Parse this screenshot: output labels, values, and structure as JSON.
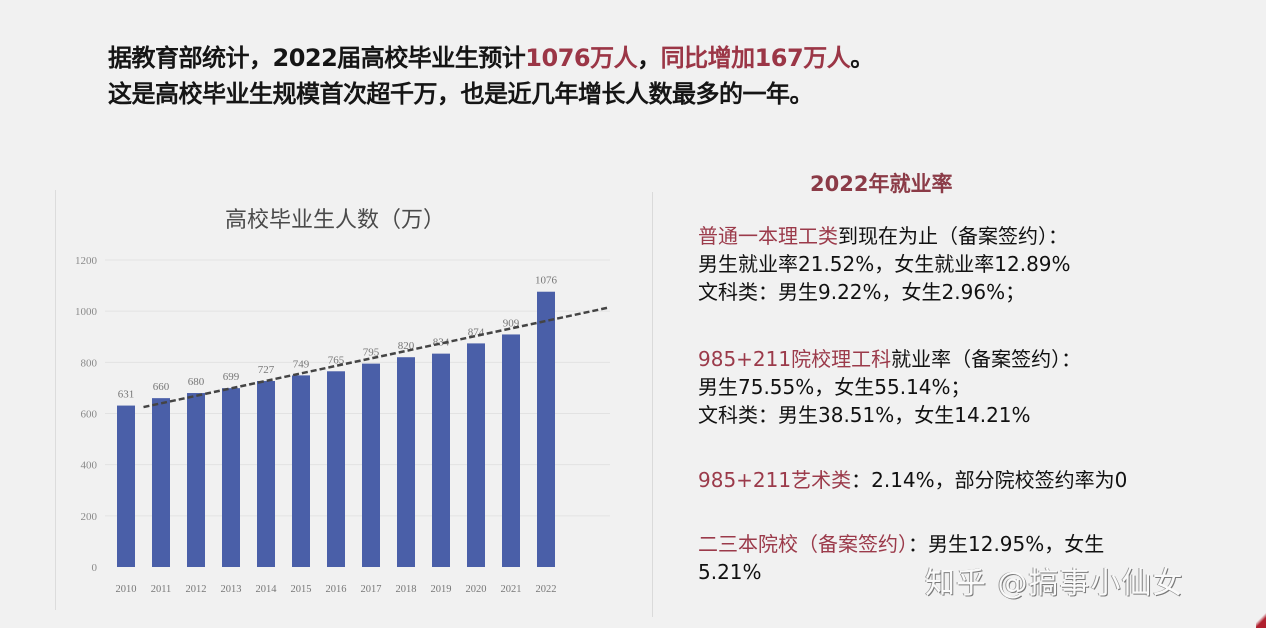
{
  "headline": {
    "line1_prefix": "据教育部统计，2022届高校毕业生预计",
    "line1_highlight1": "1076万人",
    "line1_sep": "，",
    "line1_highlight2": "同比增加167万人",
    "line1_end": "。",
    "line2": "这是高校毕业生规模首次超千万，也是近几年增长人数最多的一年。"
  },
  "chart_data": {
    "type": "bar",
    "title": "高校毕业生人数（万）",
    "categories": [
      "2010",
      "2011",
      "2012",
      "2013",
      "2014",
      "2015",
      "2016",
      "2017",
      "2018",
      "2019",
      "2020",
      "2021",
      "2022"
    ],
    "values": [
      631,
      660,
      680,
      699,
      727,
      749,
      765,
      795,
      820,
      834,
      874,
      909,
      1076
    ],
    "data_labels": [
      "631",
      "660",
      "680",
      "699",
      "727",
      "749",
      "765",
      "795",
      "820",
      "834",
      "874",
      "909",
      "1076"
    ],
    "xlabel": "",
    "ylabel": "",
    "ylim": [
      0,
      1200
    ],
    "yticks": [
      0,
      200,
      400,
      600,
      800,
      1000,
      1200
    ],
    "grid": true,
    "legend": null,
    "bar_color": "#4a5fa8",
    "annotations": [
      "dashed linear trend line"
    ]
  },
  "employment": {
    "title": "2022年就业率",
    "blocks": [
      {
        "red": "普通一本理工类",
        "rest": "到现在为止（备案签约）：",
        "lines": [
          "男生就业率21.52%，女生就业率12.89%",
          "文科类：男生9.22%，女生2.96%；"
        ]
      },
      {
        "red": "985+211院校理工科",
        "rest": "就业率（备案签约）：",
        "lines": [
          "男生75.55%，女生55.14%；",
          "文科类：男生38.51%，女生14.21%"
        ]
      },
      {
        "red": "985+211艺术类",
        "rest": "：2.14%，部分院校签约率为0",
        "lines": []
      },
      {
        "red": "二三本院校（备案签约）",
        "rest": "：男生12.95%，女生",
        "lines": [
          "5.21%"
        ]
      }
    ]
  },
  "watermark": "知乎 @搞事小仙女",
  "colors": {
    "background": "#f1f1f1",
    "highlight_red": "#9b3646",
    "bar_blue": "#4a5fa8",
    "text": "#111111"
  }
}
